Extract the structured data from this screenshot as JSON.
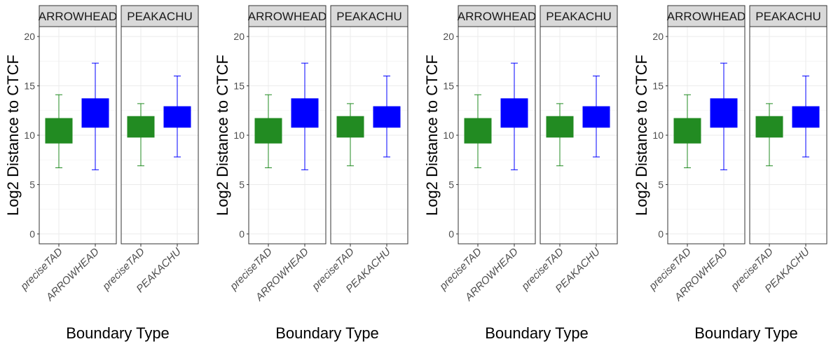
{
  "colors": {
    "green": "#228b22",
    "blue": "#0000ff",
    "strip_bg": "#d9d9d9",
    "grid": "#ebebeb",
    "panel_border": "#333333"
  },
  "chart_data": [
    {
      "type": "box",
      "xlabel": "Boundary Type",
      "ylabel": "Log2 Distance to CTCF",
      "ylim": [
        -1,
        21
      ],
      "yticks": [
        0,
        5,
        10,
        15,
        20
      ],
      "grid": true,
      "facets": [
        {
          "strip_label": "ARROWHEAD",
          "categories": [
            "preciseTAD",
            "ARROWHEAD"
          ],
          "boxes": [
            {
              "category": "preciseTAD",
              "color": "green",
              "whisker_low": 6.7,
              "q1": 9.2,
              "q3": 11.7,
              "whisker_high": 14.1
            },
            {
              "category": "ARROWHEAD",
              "color": "blue",
              "whisker_low": 6.5,
              "q1": 10.8,
              "q3": 13.7,
              "whisker_high": 17.3
            }
          ]
        },
        {
          "strip_label": "PEAKACHU",
          "categories": [
            "preciseTAD",
            "PEAKACHU"
          ],
          "boxes": [
            {
              "category": "preciseTAD",
              "color": "green",
              "whisker_low": 6.9,
              "q1": 9.8,
              "q3": 11.9,
              "whisker_high": 13.2
            },
            {
              "category": "PEAKACHU",
              "color": "blue",
              "whisker_low": 7.8,
              "q1": 10.8,
              "q3": 12.9,
              "whisker_high": 16.0
            }
          ]
        }
      ]
    },
    {
      "type": "box",
      "xlabel": "Boundary Type",
      "ylabel": "Log2 Distance to CTCF",
      "ylim": [
        -1,
        21
      ],
      "yticks": [
        0,
        5,
        10,
        15,
        20
      ],
      "grid": true,
      "facets": [
        {
          "strip_label": "ARROWHEAD",
          "categories": [
            "preciseTAD",
            "ARROWHEAD"
          ],
          "boxes": [
            {
              "category": "preciseTAD",
              "color": "green",
              "whisker_low": 6.7,
              "q1": 9.2,
              "q3": 11.7,
              "whisker_high": 14.1
            },
            {
              "category": "ARROWHEAD",
              "color": "blue",
              "whisker_low": 6.5,
              "q1": 10.8,
              "q3": 13.7,
              "whisker_high": 17.3
            }
          ]
        },
        {
          "strip_label": "PEAKACHU",
          "categories": [
            "preciseTAD",
            "PEAKACHU"
          ],
          "boxes": [
            {
              "category": "preciseTAD",
              "color": "green",
              "whisker_low": 6.9,
              "q1": 9.8,
              "q3": 11.9,
              "whisker_high": 13.2
            },
            {
              "category": "PEAKACHU",
              "color": "blue",
              "whisker_low": 7.8,
              "q1": 10.8,
              "q3": 12.9,
              "whisker_high": 16.0
            }
          ]
        }
      ]
    },
    {
      "type": "box",
      "xlabel": "Boundary Type",
      "ylabel": "Log2 Distance to CTCF",
      "ylim": [
        -1,
        21
      ],
      "yticks": [
        0,
        5,
        10,
        15,
        20
      ],
      "grid": true,
      "facets": [
        {
          "strip_label": "ARROWHEAD",
          "categories": [
            "preciseTAD",
            "ARROWHEAD"
          ],
          "boxes": [
            {
              "category": "preciseTAD",
              "color": "green",
              "whisker_low": 6.7,
              "q1": 9.2,
              "q3": 11.7,
              "whisker_high": 14.1
            },
            {
              "category": "ARROWHEAD",
              "color": "blue",
              "whisker_low": 6.5,
              "q1": 10.8,
              "q3": 13.7,
              "whisker_high": 17.3
            }
          ]
        },
        {
          "strip_label": "PEAKACHU",
          "categories": [
            "preciseTAD",
            "PEAKACHU"
          ],
          "boxes": [
            {
              "category": "preciseTAD",
              "color": "green",
              "whisker_low": 6.9,
              "q1": 9.8,
              "q3": 11.9,
              "whisker_high": 13.2
            },
            {
              "category": "PEAKACHU",
              "color": "blue",
              "whisker_low": 7.8,
              "q1": 10.8,
              "q3": 12.9,
              "whisker_high": 16.0
            }
          ]
        }
      ]
    },
    {
      "type": "box",
      "xlabel": "Boundary Type",
      "ylabel": "Log2 Distance to CTCF",
      "ylim": [
        -1,
        21
      ],
      "yticks": [
        0,
        5,
        10,
        15,
        20
      ],
      "grid": true,
      "facets": [
        {
          "strip_label": "ARROWHEAD",
          "categories": [
            "preciseTAD",
            "ARROWHEAD"
          ],
          "boxes": [
            {
              "category": "preciseTAD",
              "color": "green",
              "whisker_low": 6.7,
              "q1": 9.2,
              "q3": 11.7,
              "whisker_high": 14.1
            },
            {
              "category": "ARROWHEAD",
              "color": "blue",
              "whisker_low": 6.5,
              "q1": 10.8,
              "q3": 13.7,
              "whisker_high": 17.3
            }
          ]
        },
        {
          "strip_label": "PEAKACHU",
          "categories": [
            "preciseTAD",
            "PEAKACHU"
          ],
          "boxes": [
            {
              "category": "preciseTAD",
              "color": "green",
              "whisker_low": 6.9,
              "q1": 9.8,
              "q3": 11.9,
              "whisker_high": 13.2
            },
            {
              "category": "PEAKACHU",
              "color": "blue",
              "whisker_low": 7.8,
              "q1": 10.8,
              "q3": 12.9,
              "whisker_high": 16.0
            }
          ]
        }
      ]
    }
  ]
}
